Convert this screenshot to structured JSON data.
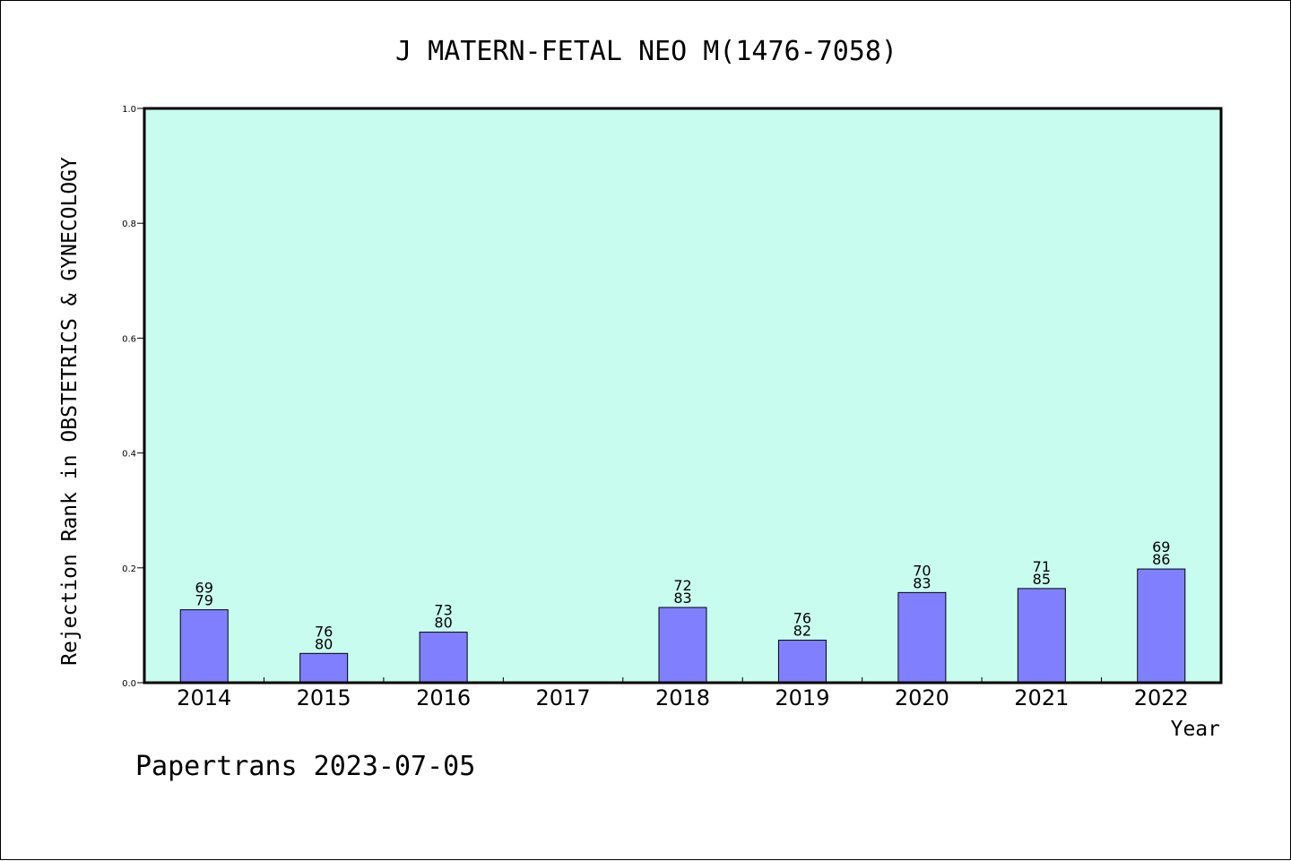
{
  "chart_data": {
    "type": "bar",
    "title": "J MATERN-FETAL NEO M(1476-7058)",
    "xlabel": "Year",
    "ylabel": "Rejection Rank in OBSTETRICS & GYNECOLOGY",
    "ylim": [
      0,
      1.0
    ],
    "yticks": [
      "0.0",
      "0.2",
      "0.4",
      "0.6",
      "0.8",
      "1.0"
    ],
    "grid": false,
    "colors": {
      "plot_bg": "#c8fcee",
      "bar": "#8080ff"
    },
    "categories": [
      "2014",
      "2015",
      "2016",
      "2017",
      "2018",
      "2019",
      "2020",
      "2021",
      "2022"
    ],
    "values": [
      0.127,
      0.051,
      0.088,
      null,
      0.131,
      0.074,
      0.157,
      0.164,
      0.198
    ],
    "labels": [
      [
        "69",
        "79"
      ],
      [
        "76",
        "80"
      ],
      [
        "73",
        "80"
      ],
      null,
      [
        "72",
        "83"
      ],
      [
        "76",
        "82"
      ],
      [
        "70",
        "83"
      ],
      [
        "71",
        "85"
      ],
      [
        "69",
        "86"
      ]
    ]
  },
  "footer": "Papertrans 2023-07-05"
}
